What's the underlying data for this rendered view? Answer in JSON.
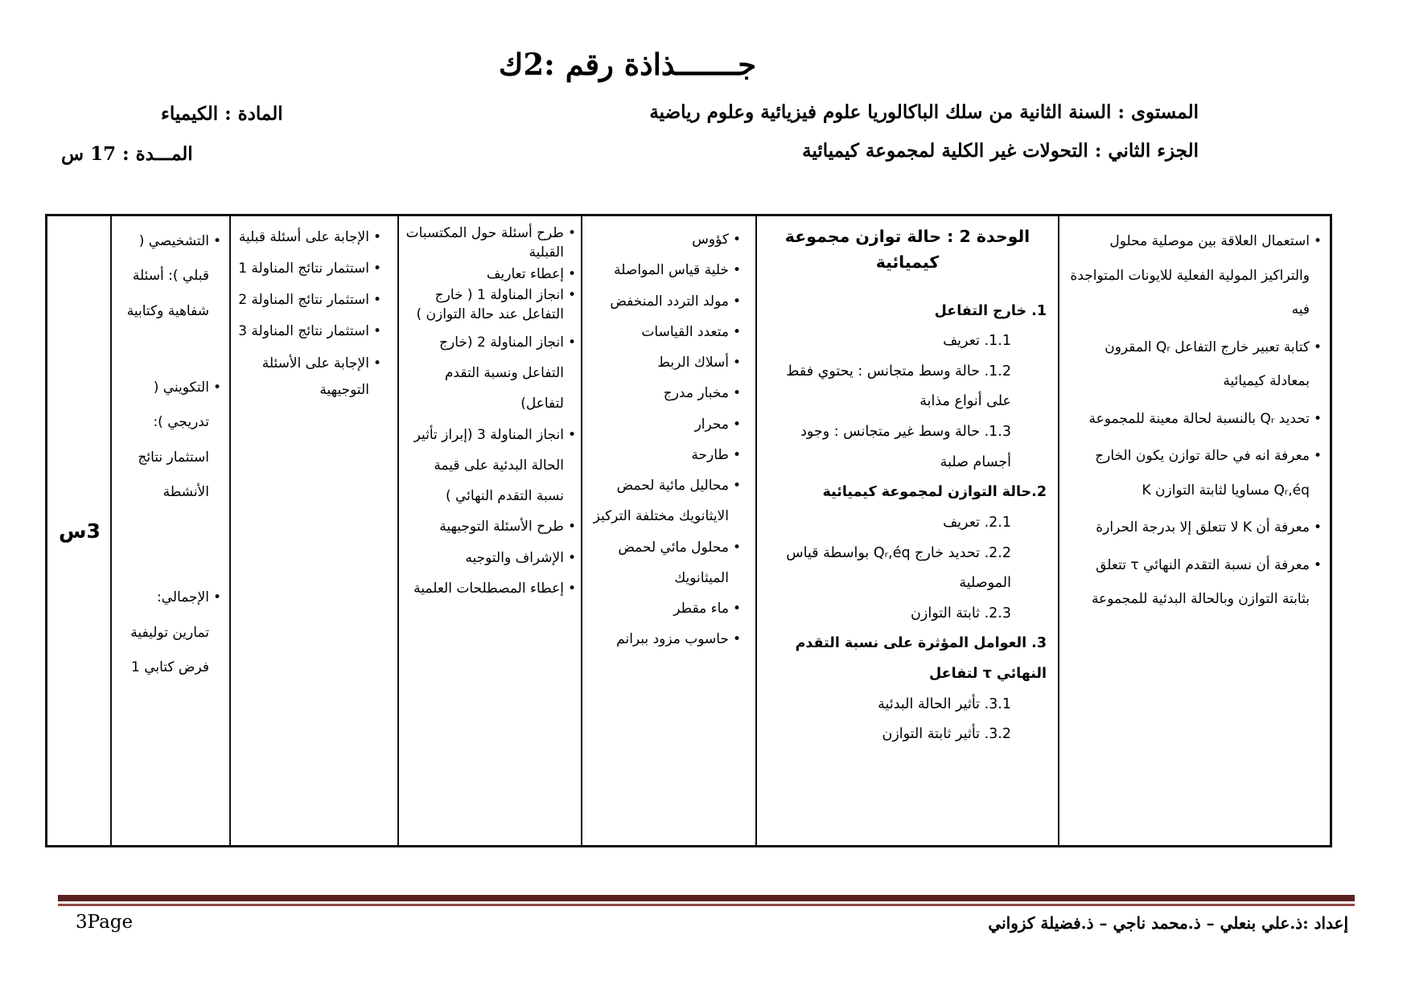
{
  "colors": {
    "text": "#000000",
    "background": "#FFFFFF",
    "footer_rule_thick": "#5B2120",
    "footer_rule_thin": "#8F4A49"
  },
  "header": {
    "title": "جـــــــذاذة رقم :2ك",
    "level": "المستوى : السنة الثانية من سلك الباكالوريا علوم فيزيائية وعلوم رياضية",
    "subject": "المادة : الكيمياء",
    "part": "الجزء الثاني : التحولات غير الكلية لمجموعة كيميائية",
    "duration": "المـــدة : 17 س"
  },
  "table": {
    "objectives": [
      "استعمال العلاقة بين موصلية محلول والتراكيز المولية الفعلية للايونات المتواجدة فيه",
      "كتابة تعبير خارج التفاعل Qᵣ المقرون بمعادلة كيميائية",
      "تحديد Qᵣ بالنسبة لحالة معينة للمجموعة",
      "معرفة انه في حالة توازن يكون الخارج Qᵣ,éq مساويا لثابتة التوازن K",
      "معرفة أن K لا تتعلق إلا بدرجة الحرارة",
      "معرفة أن نسبة التقدم النهائي τ تتعلق بثابتة التوازن وبالحالة البدئية للمجموعة"
    ],
    "unit": {
      "title": "الوحدة 2 : حالة توازن مجموعة كيميائية",
      "items": [
        {
          "text": "1.  خارج التفاعل",
          "bold": true
        },
        {
          "text": "1.1. تعريف",
          "sub": true
        },
        {
          "text": "1.2. حالة وسط متجانس : يحتوي فقط على أنواع مذابة",
          "sub": true
        },
        {
          "text": "1.3. حالة وسط غير متجانس : وجود أجسام صلبة",
          "sub": true
        },
        {
          "text": "2.حالة التوازن لمجموعة كيميائية",
          "bold": true
        },
        {
          "text": "2.1.  تعريف",
          "sub": true
        },
        {
          "text": "2.2. تحديد خارج Qᵣ,éq بواسطة قياس الموصلية",
          "sub": true
        },
        {
          "text": "2.3. ثابتة التوازن",
          "sub": true
        },
        {
          "text": "3.  العوامل المؤثرة على نسبة التقدم النهائي τ لتفاعل",
          "bold": true
        },
        {
          "text": "3.1. تأثير الحالة البدئية",
          "sub": true
        },
        {
          "text": "3.2. تأثير ثابتة التوازن",
          "sub": true
        }
      ]
    },
    "equipment": [
      "كؤوس",
      "خلية قياس المواصلة",
      "مولد التردد المنخفض",
      "متعدد القياسات",
      "أسلاك الربط",
      "مخبار مدرج",
      "محرار",
      "طارحة",
      "محاليل مائية لحمض الايثانويك مختلفة التركيز",
      "محلول مائي لحمض الميثانويك",
      "ماء مقطر",
      "حاسوب مزود ببرانم"
    ],
    "teacher_activities": [
      "طرح أسئلة حول المكتسبات القبلية",
      "إعطاء تعاريف",
      "انجاز المناولة 1 ( خارج التفاعل عند حالة التوازن )",
      "انجاز المناولة 2 (خارج التفاعل ونسبة التقدم لتفاعل)",
      "انجاز المناولة 3 (إبراز تأثير الحالة البدئية على قيمة نسبة التقدم النهائي )",
      "طرح الأسئلة التوجيهية",
      "الإشراف والتوجيه",
      "إعطاء المصطلحات العلمية"
    ],
    "student_activities": [
      "الإجابة على أسئلة قبلية",
      "استثمار نتائج المناولة 1",
      "استثمار نتائج المناولة 2",
      "استثمار نتائج المناولة 3",
      "الإجابة على الأسئلة التوجيهية"
    ],
    "evaluation": [
      "التشخيصي ( قبلي ): أسئلة شفاهية وكتابية",
      "التكويني ( تدريجي ): استثمار نتائج الأنشطة",
      "الإجمالي: تمارين توليفية فرض كتابي 1"
    ],
    "duration": "3س"
  },
  "footer": {
    "authors": "إعداد :ذ.علي بنعلي – ذ.محمد ناجي – ذ.فضيلة كزواني",
    "page": "3Page"
  }
}
